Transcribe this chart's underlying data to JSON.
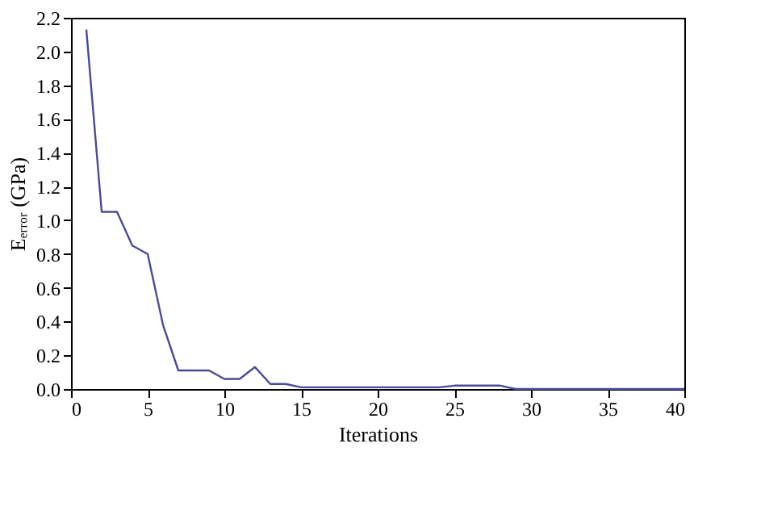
{
  "chart_data": {
    "type": "line",
    "xlabel": "Iterations",
    "ylabel": "Eₑᵣᵣₒᵣ (GPa)",
    "x": [
      1,
      2,
      3,
      4,
      5,
      6,
      7,
      8,
      9,
      10,
      11,
      12,
      13,
      14,
      15,
      16,
      17,
      18,
      19,
      20,
      21,
      22,
      23,
      24,
      25,
      26,
      27,
      28,
      29,
      30,
      31,
      32,
      33,
      34,
      35,
      36,
      37,
      38,
      39,
      40
    ],
    "series": [
      {
        "color": "#4a4a9a",
        "values": [
          2.13,
          1.05,
          1.05,
          0.85,
          0.8,
          0.38,
          0.11,
          0.11,
          0.11,
          0.06,
          0.06,
          0.13,
          0.03,
          0.03,
          0.01,
          0.01,
          0.01,
          0.01,
          0.01,
          0.01,
          0.01,
          0.01,
          0.01,
          0.01,
          0.02,
          0.02,
          0.02,
          0.02,
          0,
          0,
          0,
          0,
          0,
          0,
          0,
          0,
          0,
          0,
          0,
          0
        ]
      }
    ],
    "xlim": [
      0,
      40
    ],
    "xticks": [
      0,
      5,
      10,
      15,
      20,
      25,
      30,
      35,
      40
    ],
    "ylim": [
      0,
      2.2
    ],
    "yticks": [
      {
        "value": 0,
        "label": "0.0"
      },
      0.2,
      0.4,
      0.6,
      0.8,
      {
        "value": 1,
        "label": "1.0"
      },
      1.2,
      1.4,
      1.6,
      1.8,
      {
        "value": 2,
        "label": "2.0"
      },
      2.2
    ],
    "grid": false,
    "legend": false,
    "marker": "none",
    "line_style": "solid"
  }
}
